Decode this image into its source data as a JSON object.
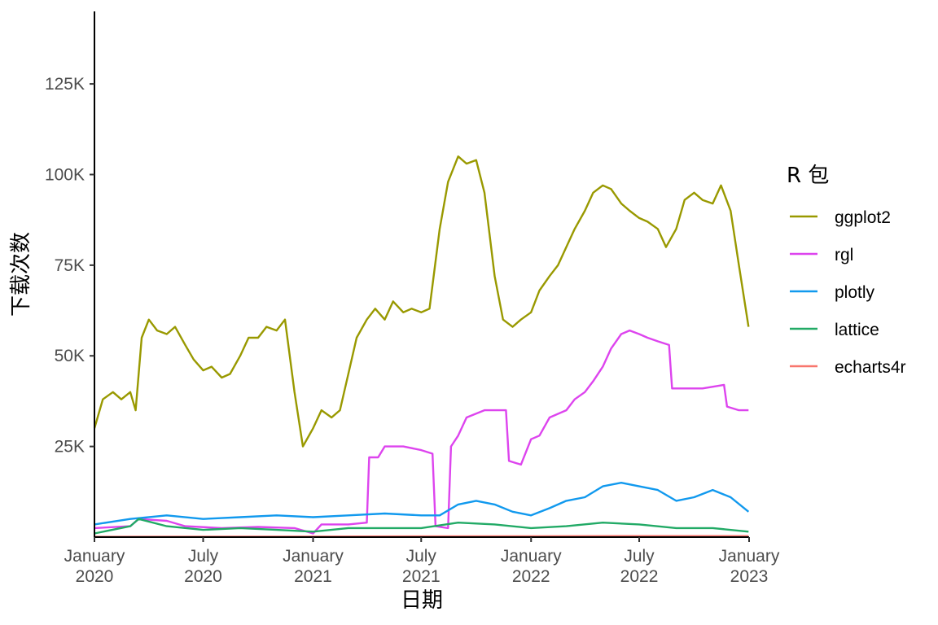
{
  "chart_data": {
    "type": "line",
    "xlabel": "日期",
    "ylabel": "下载次数",
    "x_range": [
      "2020-01-01",
      "2023-01-01"
    ],
    "ylim": [
      0,
      145000
    ],
    "y_ticks": [
      {
        "value": 25000,
        "label": "25K"
      },
      {
        "value": 50000,
        "label": "50K"
      },
      {
        "value": 75000,
        "label": "75K"
      },
      {
        "value": 100000,
        "label": "100K"
      },
      {
        "value": 125000,
        "label": "125K"
      }
    ],
    "x_ticks": [
      {
        "date": "2020-01-01",
        "month": "January",
        "year": "2020"
      },
      {
        "date": "2020-07-01",
        "month": "July",
        "year": "2020"
      },
      {
        "date": "2021-01-01",
        "month": "January",
        "year": "2021"
      },
      {
        "date": "2021-07-01",
        "month": "July",
        "year": "2021"
      },
      {
        "date": "2022-01-01",
        "month": "January",
        "year": "2022"
      },
      {
        "date": "2022-07-01",
        "month": "July",
        "year": "2022"
      },
      {
        "date": "2023-01-01",
        "month": "January",
        "year": "2023"
      }
    ],
    "grid": false,
    "legend": {
      "title": "R 包",
      "position": "right"
    },
    "series": [
      {
        "name": "ggplot2",
        "color": "#999900",
        "points": [
          [
            "2020-01-01",
            30000
          ],
          [
            "2020-01-15",
            38000
          ],
          [
            "2020-02-01",
            40000
          ],
          [
            "2020-02-15",
            38000
          ],
          [
            "2020-03-01",
            40000
          ],
          [
            "2020-03-10",
            35000
          ],
          [
            "2020-03-20",
            55000
          ],
          [
            "2020-04-01",
            60000
          ],
          [
            "2020-04-15",
            57000
          ],
          [
            "2020-05-01",
            56000
          ],
          [
            "2020-05-15",
            58000
          ],
          [
            "2020-06-01",
            53000
          ],
          [
            "2020-06-15",
            49000
          ],
          [
            "2020-07-01",
            46000
          ],
          [
            "2020-07-15",
            47000
          ],
          [
            "2020-08-01",
            44000
          ],
          [
            "2020-08-15",
            45000
          ],
          [
            "2020-09-01",
            50000
          ],
          [
            "2020-09-15",
            55000
          ],
          [
            "2020-10-01",
            55000
          ],
          [
            "2020-10-15",
            58000
          ],
          [
            "2020-11-01",
            57000
          ],
          [
            "2020-11-15",
            60000
          ],
          [
            "2020-12-01",
            40000
          ],
          [
            "2020-12-15",
            25000
          ],
          [
            "2021-01-01",
            30000
          ],
          [
            "2021-01-15",
            35000
          ],
          [
            "2021-02-01",
            33000
          ],
          [
            "2021-02-15",
            35000
          ],
          [
            "2021-03-01",
            45000
          ],
          [
            "2021-03-15",
            55000
          ],
          [
            "2021-04-01",
            60000
          ],
          [
            "2021-04-15",
            63000
          ],
          [
            "2021-05-01",
            60000
          ],
          [
            "2021-05-15",
            65000
          ],
          [
            "2021-06-01",
            62000
          ],
          [
            "2021-06-15",
            63000
          ],
          [
            "2021-07-01",
            62000
          ],
          [
            "2021-07-15",
            63000
          ],
          [
            "2021-08-01",
            85000
          ],
          [
            "2021-08-15",
            98000
          ],
          [
            "2021-09-01",
            105000
          ],
          [
            "2021-09-15",
            103000
          ],
          [
            "2021-10-01",
            104000
          ],
          [
            "2021-10-15",
            95000
          ],
          [
            "2021-11-01",
            72000
          ],
          [
            "2021-11-15",
            60000
          ],
          [
            "2021-12-01",
            58000
          ],
          [
            "2021-12-15",
            60000
          ],
          [
            "2022-01-01",
            62000
          ],
          [
            "2022-01-15",
            68000
          ],
          [
            "2022-02-01",
            72000
          ],
          [
            "2022-02-15",
            75000
          ],
          [
            "2022-03-01",
            80000
          ],
          [
            "2022-03-15",
            85000
          ],
          [
            "2022-04-01",
            90000
          ],
          [
            "2022-04-15",
            95000
          ],
          [
            "2022-05-01",
            97000
          ],
          [
            "2022-05-15",
            96000
          ],
          [
            "2022-06-01",
            92000
          ],
          [
            "2022-06-15",
            90000
          ],
          [
            "2022-07-01",
            88000
          ],
          [
            "2022-07-15",
            87000
          ],
          [
            "2022-08-01",
            85000
          ],
          [
            "2022-08-15",
            80000
          ],
          [
            "2022-09-01",
            85000
          ],
          [
            "2022-09-15",
            93000
          ],
          [
            "2022-10-01",
            95000
          ],
          [
            "2022-10-15",
            93000
          ],
          [
            "2022-11-01",
            92000
          ],
          [
            "2022-11-15",
            97000
          ],
          [
            "2022-12-01",
            90000
          ],
          [
            "2022-12-15",
            75000
          ],
          [
            "2022-12-31",
            58000
          ]
        ]
      },
      {
        "name": "rgl",
        "color": "#dd44ee",
        "points": [
          [
            "2020-01-01",
            2500
          ],
          [
            "2020-03-01",
            3000
          ],
          [
            "2020-03-15",
            5000
          ],
          [
            "2020-05-01",
            4500
          ],
          [
            "2020-06-01",
            3000
          ],
          [
            "2020-08-01",
            2500
          ],
          [
            "2020-10-01",
            2800
          ],
          [
            "2020-12-01",
            2500
          ],
          [
            "2021-01-01",
            1000
          ],
          [
            "2021-01-15",
            3500
          ],
          [
            "2021-03-01",
            3500
          ],
          [
            "2021-04-01",
            4000
          ],
          [
            "2021-04-05",
            22000
          ],
          [
            "2021-04-20",
            22000
          ],
          [
            "2021-05-01",
            25000
          ],
          [
            "2021-06-01",
            25000
          ],
          [
            "2021-07-01",
            24000
          ],
          [
            "2021-07-20",
            23000
          ],
          [
            "2021-07-25",
            3000
          ],
          [
            "2021-08-15",
            2500
          ],
          [
            "2021-08-20",
            25000
          ],
          [
            "2021-09-01",
            28000
          ],
          [
            "2021-09-15",
            33000
          ],
          [
            "2021-10-15",
            35000
          ],
          [
            "2021-11-20",
            35000
          ],
          [
            "2021-11-25",
            21000
          ],
          [
            "2021-12-15",
            20000
          ],
          [
            "2022-01-01",
            27000
          ],
          [
            "2022-01-15",
            28000
          ],
          [
            "2022-02-01",
            33000
          ],
          [
            "2022-03-01",
            35000
          ],
          [
            "2022-03-15",
            38000
          ],
          [
            "2022-04-01",
            40000
          ],
          [
            "2022-04-15",
            43000
          ],
          [
            "2022-05-01",
            47000
          ],
          [
            "2022-05-15",
            52000
          ],
          [
            "2022-06-01",
            56000
          ],
          [
            "2022-06-15",
            57000
          ],
          [
            "2022-07-01",
            56000
          ],
          [
            "2022-07-15",
            55000
          ],
          [
            "2022-08-01",
            54000
          ],
          [
            "2022-08-20",
            53000
          ],
          [
            "2022-08-25",
            41000
          ],
          [
            "2022-09-15",
            41000
          ],
          [
            "2022-10-15",
            41000
          ],
          [
            "2022-11-20",
            42000
          ],
          [
            "2022-11-25",
            36000
          ],
          [
            "2022-12-15",
            35000
          ],
          [
            "2022-12-31",
            35000
          ]
        ]
      },
      {
        "name": "plotly",
        "color": "#1199ee",
        "points": [
          [
            "2020-01-01",
            3500
          ],
          [
            "2020-03-01",
            5000
          ],
          [
            "2020-05-01",
            6000
          ],
          [
            "2020-07-01",
            5000
          ],
          [
            "2020-09-01",
            5500
          ],
          [
            "2020-11-01",
            6000
          ],
          [
            "2021-01-01",
            5500
          ],
          [
            "2021-03-01",
            6000
          ],
          [
            "2021-05-01",
            6500
          ],
          [
            "2021-07-01",
            6000
          ],
          [
            "2021-08-01",
            6000
          ],
          [
            "2021-09-01",
            9000
          ],
          [
            "2021-10-01",
            10000
          ],
          [
            "2021-11-01",
            9000
          ],
          [
            "2021-12-01",
            7000
          ],
          [
            "2022-01-01",
            6000
          ],
          [
            "2022-02-01",
            8000
          ],
          [
            "2022-03-01",
            10000
          ],
          [
            "2022-04-01",
            11000
          ],
          [
            "2022-05-01",
            14000
          ],
          [
            "2022-06-01",
            15000
          ],
          [
            "2022-07-01",
            14000
          ],
          [
            "2022-08-01",
            13000
          ],
          [
            "2022-09-01",
            10000
          ],
          [
            "2022-10-01",
            11000
          ],
          [
            "2022-11-01",
            13000
          ],
          [
            "2022-12-01",
            11000
          ],
          [
            "2022-12-31",
            7000
          ]
        ]
      },
      {
        "name": "lattice",
        "color": "#22aa66",
        "points": [
          [
            "2020-01-01",
            1000
          ],
          [
            "2020-03-01",
            3000
          ],
          [
            "2020-03-15",
            5000
          ],
          [
            "2020-05-01",
            3000
          ],
          [
            "2020-07-01",
            2000
          ],
          [
            "2020-09-01",
            2500
          ],
          [
            "2020-11-01",
            2000
          ],
          [
            "2021-01-01",
            1500
          ],
          [
            "2021-03-01",
            2500
          ],
          [
            "2021-05-01",
            2500
          ],
          [
            "2021-07-01",
            2500
          ],
          [
            "2021-09-01",
            4000
          ],
          [
            "2021-11-01",
            3500
          ],
          [
            "2022-01-01",
            2500
          ],
          [
            "2022-03-01",
            3000
          ],
          [
            "2022-05-01",
            4000
          ],
          [
            "2022-07-01",
            3500
          ],
          [
            "2022-09-01",
            2500
          ],
          [
            "2022-11-01",
            2500
          ],
          [
            "2022-12-31",
            1500
          ]
        ]
      },
      {
        "name": "echarts4r",
        "color": "#f8766d",
        "points": [
          [
            "2020-01-01",
            100
          ],
          [
            "2020-07-01",
            120
          ],
          [
            "2021-01-01",
            150
          ],
          [
            "2021-07-01",
            200
          ],
          [
            "2022-01-01",
            250
          ],
          [
            "2022-07-01",
            300
          ],
          [
            "2022-12-31",
            300
          ]
        ]
      }
    ]
  }
}
